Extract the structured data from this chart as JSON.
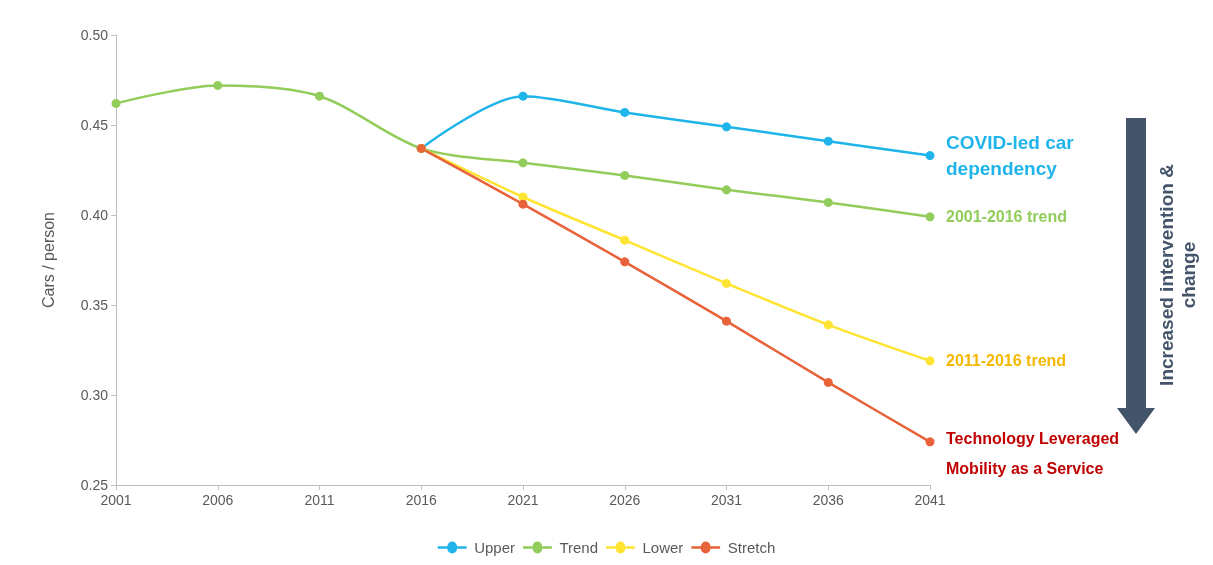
{
  "chart_data": {
    "type": "line",
    "ylabel": "Cars / person",
    "x": [
      2001,
      2006,
      2011,
      2016,
      2021,
      2026,
      2031,
      2036,
      2041
    ],
    "xlim": [
      2001,
      2041
    ],
    "xticks": [
      2001,
      2006,
      2011,
      2016,
      2021,
      2026,
      2031,
      2036,
      2041
    ],
    "ylim": [
      0.25,
      0.5
    ],
    "yticks": [
      {
        "value": 0.25,
        "label": "0.25"
      },
      {
        "value": 0.3,
        "label": "0.30"
      },
      {
        "value": 0.35,
        "label": "0.35"
      },
      {
        "value": 0.4,
        "label": "0.40"
      },
      {
        "value": 0.45,
        "label": "0.45"
      },
      {
        "value": 0.5,
        "label": "0.50"
      }
    ],
    "grid": false,
    "legend": "bottom",
    "marker": "circle",
    "line_style": "solid",
    "series": [
      {
        "name": "Upper",
        "color": "#1fb4ea",
        "x": [
          2016,
          2021,
          2026,
          2031,
          2036,
          2041
        ],
        "values": [
          0.437,
          0.466,
          0.457,
          0.449,
          0.441,
          0.433
        ]
      },
      {
        "name": "Trend",
        "color": "#92cc5a",
        "values": [
          0.462,
          0.472,
          0.466,
          0.437,
          0.429,
          0.422,
          0.414,
          0.407,
          0.399
        ]
      },
      {
        "name": "Lower",
        "color": "#ffe433",
        "x": [
          2016,
          2021,
          2026,
          2031,
          2036,
          2041
        ],
        "values": [
          0.437,
          0.41,
          0.386,
          0.362,
          0.339,
          0.319
        ]
      },
      {
        "name": "Stretch",
        "color": "#e8623a",
        "x": [
          2016,
          2021,
          2026,
          2031,
          2036,
          2041
        ],
        "values": [
          0.437,
          0.406,
          0.374,
          0.341,
          0.307,
          0.274
        ]
      }
    ],
    "annotations": [
      "COVID-led car dependency",
      "2001-2016 trend",
      "2011-2016 trend",
      "Technology Leveraged Mobility as a Service",
      "Increased intervention & change"
    ]
  }
}
